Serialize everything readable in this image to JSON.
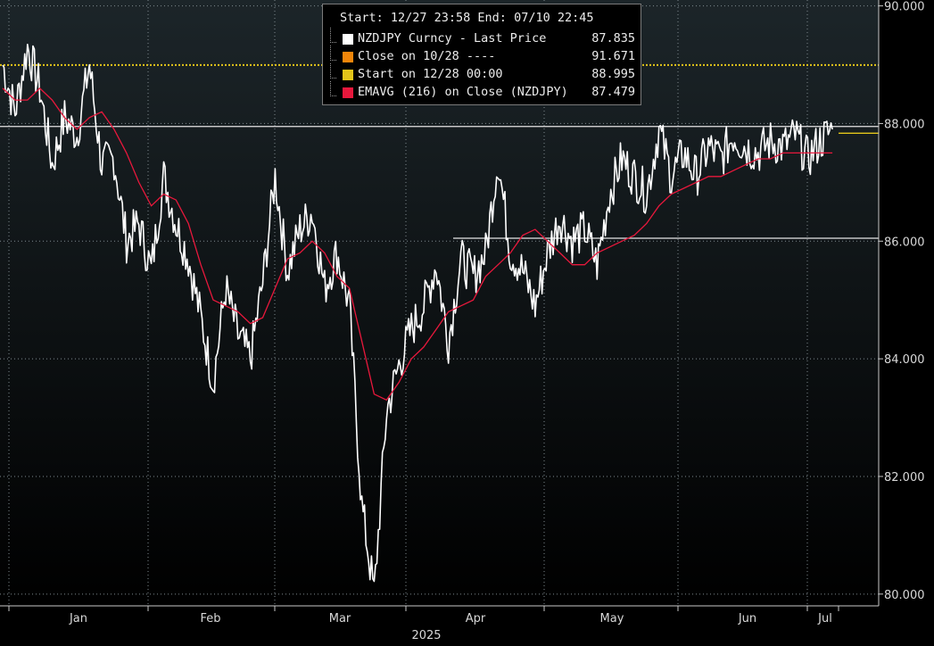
{
  "colors": {
    "background_top": "#1c2529",
    "background_bottom": "#000000",
    "price_line": "#ffffff",
    "ema_line": "#e8183c",
    "start_line": "#e3c51a",
    "close_marker": "#f0860a",
    "grid": "#7f8a8f",
    "axis_text": "#d8d8d8"
  },
  "legend": {
    "header": "Start: 12/27 23:58 End: 07/10 22:45",
    "rows": [
      {
        "label": "NZDJPY Curncy - Last Price",
        "value": "87.835",
        "color": "#ffffff"
      },
      {
        "label": "Close on 10/28 ----",
        "value": "91.671",
        "color": "#f0860a"
      },
      {
        "label": "Start on 12/28 00:00",
        "value": "88.995",
        "color": "#e3c51a"
      },
      {
        "label": "EMAVG (216)  on Close (NZDJPY)",
        "value": "87.479",
        "color": "#e8183c"
      }
    ]
  },
  "chart_data": {
    "type": "line",
    "x_tick_labels": [
      "Jan",
      "Feb",
      "Mar",
      "Apr",
      "May",
      "Jun",
      "Jul"
    ],
    "x_year_label": "2025",
    "y_tick_labels": [
      "80.000",
      "82.000",
      "84.000",
      "86.000",
      "88.000",
      "90.000"
    ],
    "ylim": [
      79.8,
      90.1
    ],
    "grid": true,
    "legend_position": "top-center",
    "start_level": 88.995,
    "last_price": 87.835,
    "reference_levels": [
      {
        "value": 87.95
      },
      {
        "value": 86.05
      }
    ],
    "x_index_range": [
      0,
      135
    ],
    "series": [
      {
        "name": "NZDJPY Curncy - Last Price",
        "x": [
          0,
          2,
          4,
          6,
          8,
          10,
          12,
          14,
          16,
          18,
          20,
          22,
          24,
          26,
          28,
          30,
          32,
          34,
          36,
          38,
          40,
          42,
          44,
          46,
          48,
          50,
          52,
          54,
          56,
          58,
          60,
          62,
          64,
          66,
          68,
          70,
          72,
          74,
          76,
          78,
          80,
          82,
          84,
          86,
          88,
          90,
          92,
          94,
          96,
          98,
          100,
          102,
          104,
          106,
          108,
          110,
          112,
          114,
          116,
          118,
          120,
          122,
          124,
          126,
          128,
          130,
          132,
          134
        ],
        "y": [
          89.0,
          88.2,
          89.3,
          88.6,
          87.3,
          88.1,
          87.8,
          89.0,
          87.3,
          87.4,
          86.0,
          86.3,
          85.5,
          87.1,
          86.3,
          85.7,
          84.7,
          83.6,
          85.2,
          84.4,
          84.0,
          85.3,
          87.1,
          85.5,
          86.2,
          86.5,
          85.2,
          85.8,
          84.9,
          81.5,
          80.0,
          83.1,
          83.9,
          84.5,
          84.9,
          85.6,
          84.3,
          85.7,
          85.4,
          85.8,
          87.4,
          85.8,
          85.5,
          84.9,
          85.8,
          86.4,
          86.0,
          86.2,
          85.6,
          86.8,
          87.4,
          87.1,
          86.8,
          87.9,
          87.1,
          87.5,
          87.1,
          87.6,
          87.4,
          87.8,
          87.6,
          87.5,
          87.7,
          87.6,
          87.8,
          87.4,
          87.7,
          87.9
        ]
      },
      {
        "name": "EMAVG (216)  on Close (NZDJPY)",
        "x": [
          0,
          2,
          4,
          6,
          8,
          10,
          12,
          14,
          16,
          18,
          20,
          22,
          24,
          26,
          28,
          30,
          32,
          34,
          36,
          38,
          40,
          42,
          44,
          46,
          48,
          50,
          52,
          54,
          56,
          58,
          60,
          62,
          64,
          66,
          68,
          70,
          72,
          74,
          76,
          78,
          80,
          82,
          84,
          86,
          88,
          90,
          92,
          94,
          96,
          98,
          100,
          102,
          104,
          106,
          108,
          110,
          112,
          114,
          116,
          118,
          120,
          122,
          124,
          126,
          128,
          130,
          132,
          134
        ],
        "y": [
          88.6,
          88.4,
          88.4,
          88.6,
          88.4,
          88.1,
          87.9,
          88.1,
          88.2,
          87.9,
          87.5,
          87.0,
          86.6,
          86.8,
          86.7,
          86.3,
          85.6,
          85.0,
          84.9,
          84.8,
          84.6,
          84.7,
          85.2,
          85.7,
          85.8,
          86.0,
          85.8,
          85.4,
          85.2,
          84.3,
          83.4,
          83.3,
          83.6,
          84.0,
          84.2,
          84.5,
          84.8,
          84.9,
          85.0,
          85.4,
          85.6,
          85.8,
          86.1,
          86.2,
          86.0,
          85.8,
          85.6,
          85.6,
          85.8,
          85.9,
          86.0,
          86.1,
          86.3,
          86.6,
          86.8,
          86.9,
          87.0,
          87.1,
          87.1,
          87.2,
          87.3,
          87.4,
          87.4,
          87.5,
          87.5,
          87.5,
          87.5,
          87.5
        ]
      }
    ]
  }
}
